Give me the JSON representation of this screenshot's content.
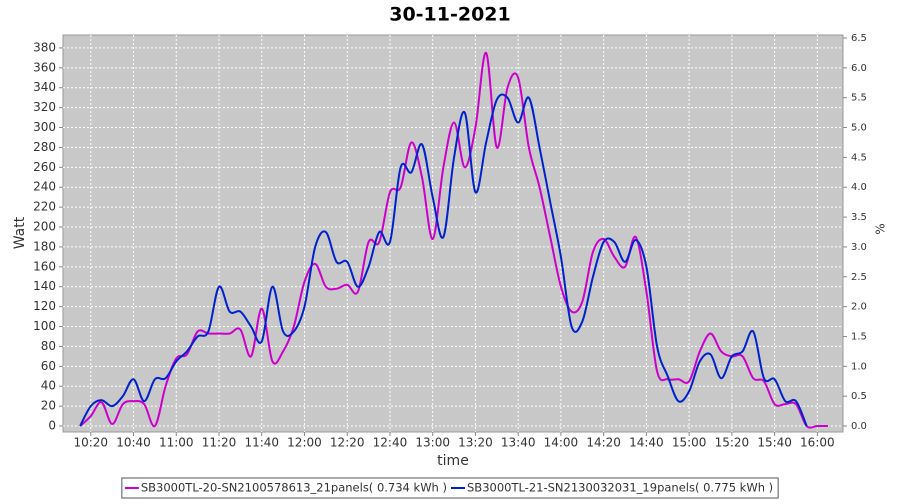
{
  "chart_data": {
    "type": "line",
    "title": "30-11-2021",
    "xlabel": "time",
    "ylabel": "Watt",
    "y2label": "%",
    "x": [
      "10:10",
      "10:15",
      "10:20",
      "10:25",
      "10:30",
      "10:35",
      "10:40",
      "10:45",
      "10:50",
      "10:55",
      "11:00",
      "11:05",
      "11:10",
      "11:15",
      "11:20",
      "11:25",
      "11:30",
      "11:35",
      "11:40",
      "11:45",
      "11:50",
      "11:55",
      "12:00",
      "12:05",
      "12:10",
      "12:15",
      "12:20",
      "12:25",
      "12:30",
      "12:35",
      "12:40",
      "12:45",
      "12:50",
      "12:55",
      "13:00",
      "13:05",
      "13:10",
      "13:15",
      "13:20",
      "13:25",
      "13:30",
      "13:35",
      "13:40",
      "13:45",
      "13:50",
      "13:55",
      "14:00",
      "14:05",
      "14:10",
      "14:15",
      "14:20",
      "14:25",
      "14:30",
      "14:35",
      "14:40",
      "14:45",
      "14:50",
      "14:55",
      "15:00",
      "15:05",
      "15:10",
      "15:15",
      "15:20",
      "15:25",
      "15:30",
      "15:35",
      "15:40",
      "15:45",
      "15:50",
      "15:55",
      "16:00",
      "16:05"
    ],
    "series": [
      {
        "name": "SB3000TL-20-SN2100578613_21panels( 0.734 kWh )",
        "color": "#cc00cc",
        "values": [
          null,
          0,
          10,
          24,
          2,
          22,
          25,
          22,
          0,
          40,
          68,
          72,
          95,
          93,
          93,
          93,
          97,
          70,
          118,
          65,
          75,
          100,
          145,
          163,
          140,
          138,
          142,
          135,
          185,
          185,
          235,
          240,
          285,
          250,
          188,
          260,
          305,
          260,
          300,
          375,
          280,
          340,
          350,
          280,
          240,
          190,
          140,
          115,
          125,
          175,
          188,
          170,
          160,
          190,
          135,
          55,
          47,
          47,
          45,
          75,
          93,
          75,
          70,
          70,
          48,
          45,
          22,
          22,
          22,
          0,
          0,
          0
        ]
      },
      {
        "name": "SB3000TL-21-SN2130032031_19panels( 0.775 kWh )",
        "color": "#0022cc",
        "values": [
          null,
          0,
          20,
          26,
          20,
          30,
          47,
          25,
          47,
          48,
          65,
          75,
          90,
          95,
          140,
          115,
          115,
          100,
          85,
          140,
          95,
          95,
          120,
          180,
          195,
          165,
          165,
          140,
          160,
          195,
          185,
          260,
          255,
          283,
          230,
          190,
          270,
          315,
          235,
          285,
          328,
          330,
          305,
          330,
          280,
          225,
          170,
          100,
          105,
          150,
          185,
          185,
          165,
          187,
          160,
          80,
          50,
          25,
          35,
          65,
          72,
          48,
          70,
          75,
          95,
          48,
          47,
          25,
          25,
          0,
          null,
          null
        ]
      }
    ],
    "xlim": [
      "10:07",
      "16:12"
    ],
    "xticks": [
      "10:20",
      "10:40",
      "11:00",
      "11:20",
      "11:40",
      "12:00",
      "12:20",
      "12:40",
      "13:00",
      "13:20",
      "13:40",
      "14:00",
      "14:20",
      "14:40",
      "15:00",
      "15:20",
      "15:40",
      "16:00"
    ],
    "ylim": [
      -6,
      393
    ],
    "yticks": [
      0,
      20,
      40,
      60,
      80,
      100,
      120,
      140,
      160,
      180,
      200,
      220,
      240,
      260,
      280,
      300,
      320,
      340,
      360,
      380
    ],
    "y2lim": [
      -0.1,
      6.55
    ],
    "y2ticks": [
      {
        "value": 0,
        "label": "0.0"
      },
      0.5,
      {
        "value": 1,
        "label": "1.0"
      },
      1.5,
      {
        "value": 2,
        "label": "2.0"
      },
      2.5,
      {
        "value": 3,
        "label": "3.0"
      },
      3.5,
      {
        "value": 4,
        "label": "4.0"
      },
      4.5,
      {
        "value": 5,
        "label": "5.0"
      },
      5.5,
      {
        "value": 6,
        "label": "6.0"
      },
      6.5
    ],
    "grid": true,
    "legend": "bottom"
  }
}
